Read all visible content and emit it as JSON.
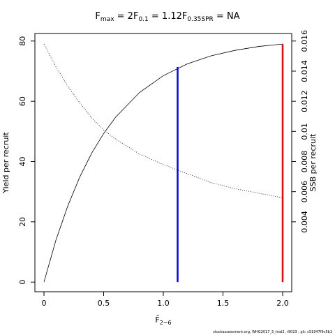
{
  "chart_data": {
    "type": "line",
    "title_parts": [
      {
        "symbol": "F",
        "subscript": "max",
        "text": " = 2"
      },
      {
        "symbol": "F",
        "subscript": "0.1",
        "text": " = 1.12"
      },
      {
        "symbol": "F",
        "subscript": "0.35SPR",
        "text": " = NA"
      }
    ],
    "xlabel": {
      "symbol": "F̄",
      "subscript": "2−6"
    },
    "ylabel": "Yield per recruit",
    "y2label": "SSB per recruit",
    "footnote": "stockassessment.org, WHG2017_3_trial2, r9023 , git: c51947f9c5b1",
    "x": [
      0,
      0.1,
      0.2,
      0.3,
      0.4,
      0.5,
      0.6,
      0.8,
      1.0,
      1.2,
      1.4,
      1.6,
      1.8,
      2.0
    ],
    "series": [
      {
        "name": "Yield per recruit",
        "color": "#000000",
        "dash": "solid",
        "values": [
          0,
          13.9,
          25.3,
          34.9,
          42.8,
          49.3,
          54.7,
          62.9,
          68.5,
          72.4,
          75.1,
          76.9,
          78.2,
          79.0
        ]
      },
      {
        "name": "SSB per recruit",
        "color": "#000000",
        "dash": "dotted",
        "axis": "y2",
        "values": [
          0.0158,
          0.0143,
          0.013,
          0.0119,
          0.0109,
          0.0101,
          0.0095,
          0.0085,
          0.0078,
          0.0072,
          0.0066,
          0.0062,
          0.0059,
          0.0056
        ]
      }
    ],
    "reference_lines": [
      {
        "x": 1.12,
        "y": 71.4,
        "color": "#0000ff"
      },
      {
        "x": 2,
        "y": 79.0,
        "color": "#ff0000"
      }
    ],
    "xlim": [
      -0.076,
      2.076
    ],
    "ylim": [
      -3.2,
      82.5
    ],
    "y2lim": [
      -0.00064,
      0.0165
    ],
    "xticks": [
      0,
      0.5,
      {
        "value": 1,
        "label": "1.0"
      },
      1.5,
      {
        "value": 2,
        "label": "2.0"
      }
    ],
    "yticks": [
      0,
      20,
      40,
      60,
      80
    ],
    "y2ticks": [
      0.004,
      0.006,
      0.008,
      0.01,
      0.012,
      0.014,
      0.016
    ]
  }
}
